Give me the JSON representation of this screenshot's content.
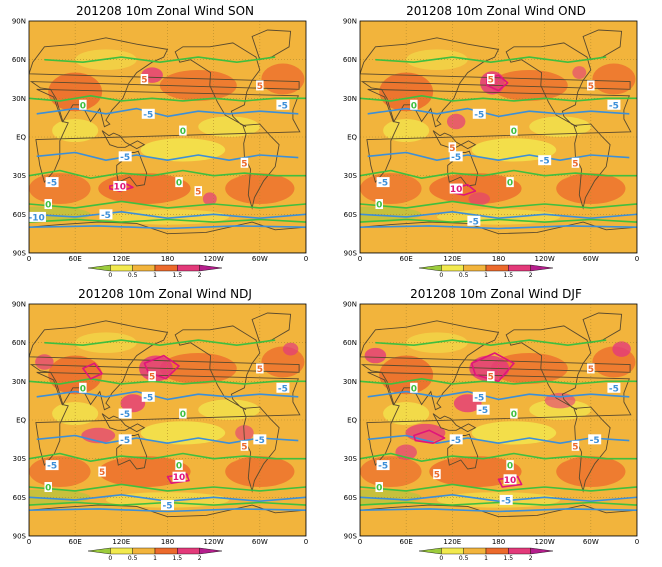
{
  "panels": [
    {
      "id": "son",
      "date": "201208",
      "variable": "10m Zonal Wind",
      "season": "SON"
    },
    {
      "id": "ond",
      "date": "201208",
      "variable": "10m Zonal Wind",
      "season": "OND"
    },
    {
      "id": "ndj",
      "date": "201208",
      "variable": "10m Zonal Wind",
      "season": "NDJ"
    },
    {
      "id": "djf",
      "date": "201208",
      "variable": "10m Zonal Wind",
      "season": "DJF"
    }
  ],
  "axes": {
    "lat_labels": [
      "90N",
      "60N",
      "30N",
      "EQ",
      "30S",
      "60S",
      "90S"
    ],
    "lon_labels": [
      "0",
      "60E",
      "120E",
      "180",
      "120W",
      "60W",
      "0"
    ]
  },
  "colorbar": {
    "ticks": [
      "0",
      "0.5",
      "1",
      "1.5",
      "2"
    ],
    "colors": [
      "#9ccc3c",
      "#f2e94e",
      "#f2b43c",
      "#ec6a2c",
      "#e33a7a",
      "#b51e8c"
    ]
  },
  "contour_label_values": [
    "0",
    "5",
    "-5",
    "10",
    "-10"
  ],
  "colors": {
    "contour_green": "#3fbf3f",
    "contour_blue": "#3c8fd8",
    "contour_pink": "#e0157a",
    "land": "#5a4a2e",
    "gridline": "#b08a2c"
  }
}
